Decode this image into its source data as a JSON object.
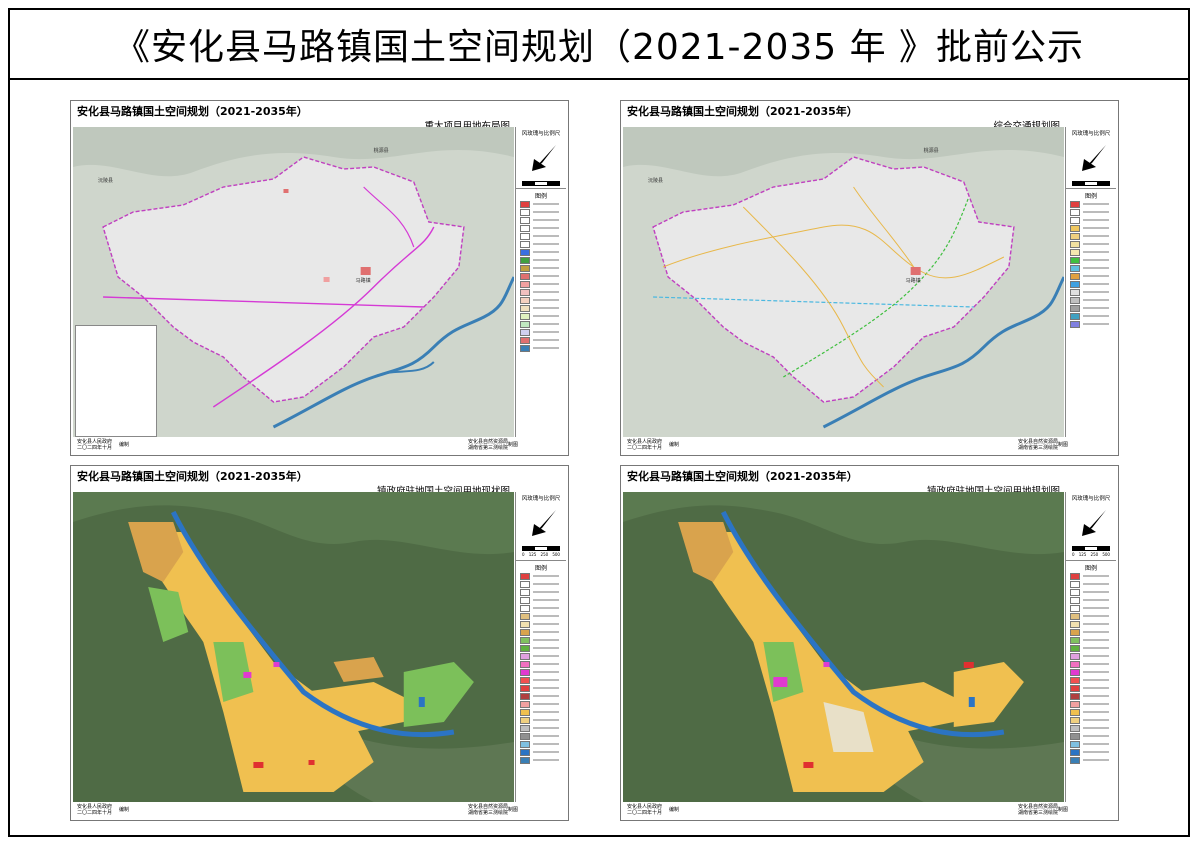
{
  "page_title": "《安化县马路镇国土空间规划（2021-2035 年 》批前公示",
  "panels": [
    {
      "plan_title": "安化县马路镇国土空间规划（2021-2035年）",
      "map_name": "重大项目用地布局图",
      "legend_heading": "风玫瑰与比例尺",
      "legend_label": "图例",
      "footer_left": [
        "安化县人民政府",
        "二〇二四年十月"
      ],
      "footer_left_role": "编制",
      "footer_right": [
        "安化县自然资源局",
        "湖南省第三测绘院"
      ],
      "footer_right_role": "制图"
    },
    {
      "plan_title": "安化县马路镇国土空间规划（2021-2035年）",
      "map_name": "综合交通规划图",
      "legend_heading": "风玫瑰与比例尺",
      "legend_label": "图例",
      "footer_left": [
        "安化县人民政府",
        "二〇二四年十月"
      ],
      "footer_left_role": "编制",
      "footer_right": [
        "安化县自然资源局",
        "湖南省第三测绘院"
      ],
      "footer_right_role": "制图"
    },
    {
      "plan_title": "安化县马路镇国土空间规划（2021-2035年）",
      "map_name": "镇政府驻地国土空间用地现状图",
      "legend_heading": "风玫瑰与比例尺",
      "legend_label": "图例",
      "scale_ticks": [
        "0",
        "125",
        "250",
        "500"
      ],
      "footer_left": [
        "安化县人民政府",
        "二〇二四年十月"
      ],
      "footer_left_role": "编制",
      "footer_right": [
        "安化县自然资源局",
        "湖南省第三测绘院"
      ],
      "footer_right_role": "制图"
    },
    {
      "plan_title": "安化县马路镇国土空间规划（2021-2035年）",
      "map_name": "镇政府驻地国土空间用地规划图",
      "legend_heading": "风玫瑰与比例尺",
      "legend_label": "图例",
      "scale_ticks": [
        "0",
        "125",
        "250",
        "500"
      ],
      "footer_left": [
        "安化县人民政府",
        "二〇二四年十月"
      ],
      "footer_left_role": "编制",
      "footer_right": [
        "安化县自然资源局",
        "湖南省第三测绘院"
      ],
      "footer_right_role": "制图"
    }
  ],
  "map_labels": {
    "county_left": "沅陵县",
    "county_top": "桃源县",
    "town_center": "马路镇"
  },
  "colors": {
    "terrain": "#cfd6cc",
    "plan_area": "#e8e8e8",
    "boundary": "#c040c0",
    "river": "#3a7fb5",
    "project_line": "#d53ad5",
    "road_yellow": "#e8b84a",
    "road_green": "#3fbf3f",
    "road_cyan": "#4ab8e0",
    "forest": "#4f6b45",
    "construction": "#f0c050",
    "farmland": "#d9a34d",
    "green_land": "#7cc05a",
    "red_land": "#e03030",
    "magenta_land": "#e03ad0",
    "blue_river": "#2b74c4"
  },
  "legend_swatches": {
    "major": [
      "#e04040",
      "#ffffff",
      "#ffffff",
      "#ffffff",
      "#ffffff",
      "#ffffff",
      "#3a6fe0",
      "#40a040",
      "#c0a040",
      "#e07070",
      "#f0a0a0",
      "#f0c0c0",
      "#f4d0c0",
      "#f0e0c0",
      "#e0f0c0",
      "#c0e8c0",
      "#d0d0f0",
      "#e07070",
      "#3a7fb5"
    ],
    "traffic": [
      "#e04040",
      "#ffffff",
      "#ffffff",
      "#f0c860",
      "#f0d080",
      "#f0e0a0",
      "#f4e8b0",
      "#40c040",
      "#60c0e0",
      "#e0a040",
      "#40a0e0",
      "#e0e0e0",
      "#c0c0c0",
      "#a0a0a0",
      "#40a0c0",
      "#8080e0"
    ],
    "landuse": [
      "#e04040",
      "#ffffff",
      "#ffffff",
      "#ffffff",
      "#ffffff",
      "#e0c080",
      "#f0e0b0",
      "#d9a34d",
      "#80c060",
      "#60b040",
      "#e0a0e0",
      "#f070c0",
      "#e03ad0",
      "#f05050",
      "#e04040",
      "#b04040",
      "#f0a0a0",
      "#f0c050",
      "#f0d080",
      "#c0c0c0",
      "#909090",
      "#80c0e0",
      "#2b74c4",
      "#3a7fb5"
    ]
  }
}
